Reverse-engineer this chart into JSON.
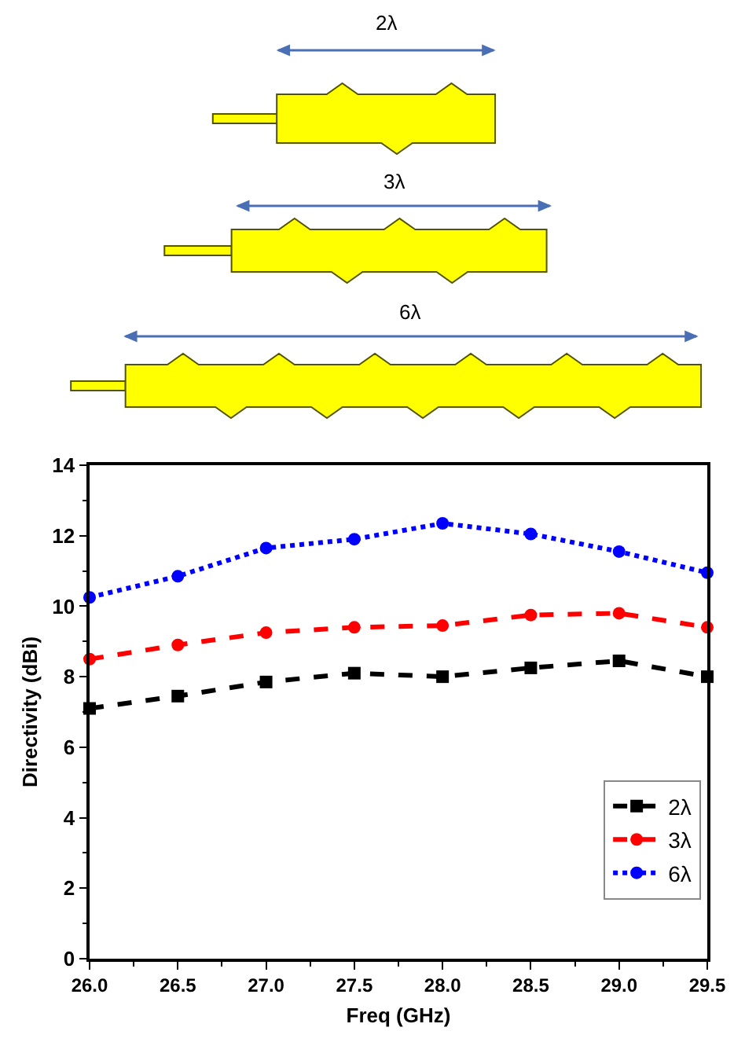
{
  "chart_data": {
    "type": "line",
    "xlabel": "Freq (GHz)",
    "ylabel": "Directivity (dBi)",
    "x": [
      26.0,
      26.5,
      27.0,
      27.5,
      28.0,
      28.5,
      29.0,
      29.5
    ],
    "series": [
      {
        "name": "2λ",
        "color": "#000000",
        "marker": "square",
        "line_style": "dashed",
        "values": [
          7.1,
          7.45,
          7.85,
          8.1,
          8.0,
          8.25,
          8.45,
          8.0
        ]
      },
      {
        "name": "3λ",
        "color": "#ff0000",
        "marker": "circle",
        "line_style": "dashed",
        "values": [
          8.5,
          8.9,
          9.25,
          9.4,
          9.45,
          9.75,
          9.8,
          9.4
        ]
      },
      {
        "name": "6λ",
        "color": "#0000ff",
        "marker": "circle",
        "line_style": "dotted",
        "values": [
          10.25,
          10.85,
          11.65,
          11.9,
          12.35,
          12.05,
          11.55,
          10.95
        ]
      }
    ],
    "xlim": [
      26.0,
      29.5
    ],
    "xticks": [
      {
        "value": 26.0,
        "label": "26.0"
      },
      {
        "value": 26.5,
        "label": "26.5"
      },
      {
        "value": 27.0,
        "label": "27.0"
      },
      {
        "value": 27.5,
        "label": "27.5"
      },
      {
        "value": 28.0,
        "label": "28.0"
      },
      {
        "value": 28.5,
        "label": "28.5"
      },
      {
        "value": 29.0,
        "label": "29.0"
      },
      {
        "value": 29.5,
        "label": "29.5"
      }
    ],
    "ylim": [
      0,
      14
    ],
    "yticks": [
      0,
      2,
      4,
      6,
      8,
      10,
      12,
      14
    ],
    "legend": "bottom right",
    "annotations": [
      "2λ",
      "3λ",
      "6λ"
    ]
  }
}
